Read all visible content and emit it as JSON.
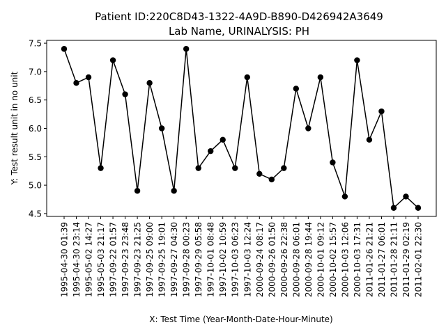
{
  "chart_data": {
    "type": "line",
    "title": "Patient ID:220C8D43-1322-4A9D-B890-D426942A3649",
    "subtitle": "Lab Name, URINALYSIS: PH",
    "xlabel": "X: Test Time (Year-Month-Date-Hour-Minute)",
    "ylabel": "Y: Test result unit in no unit",
    "ylim": [
      4.45,
      7.55
    ],
    "yticks": [
      "4.5",
      "5.0",
      "5.5",
      "6.0",
      "6.5",
      "7.0",
      "7.5"
    ],
    "grid": false,
    "line_color": "#000000",
    "categories": [
      "1995-04-30 01:39",
      "1995-04-30 23:14",
      "1995-05-02 14:27",
      "1995-05-03 21:17",
      "1997-09-22 01:57",
      "1997-09-23 23:48",
      "1997-09-23 21:25",
      "1997-09-25 09:00",
      "1997-09-25 19:01",
      "1997-09-27 04:30",
      "1997-09-28 00:23",
      "1997-09-29 05:58",
      "1997-10-01 08:48",
      "1997-10-02 10:59",
      "1997-10-03 06:23",
      "1997-10-03 12:24",
      "2000-09-24 08:17",
      "2000-09-26 01:50",
      "2000-09-26 22:38",
      "2000-09-28 06:01",
      "2000-09-28 19:44",
      "2000-10-01 09:12",
      "2000-10-02 15:57",
      "2000-10-03 12:06",
      "2000-10-03 17:31",
      "2011-01-26 21:21",
      "2011-01-27 06:01",
      "2011-01-28 21:11",
      "2011-01-29 02:19",
      "2011-02-01 22:30"
    ],
    "values": [
      7.4,
      6.8,
      6.9,
      5.3,
      7.2,
      6.6,
      4.9,
      6.8,
      6.0,
      4.9,
      7.4,
      5.3,
      5.6,
      5.8,
      5.3,
      6.9,
      5.2,
      5.1,
      5.3,
      6.7,
      6.0,
      6.9,
      5.4,
      4.8,
      7.2,
      5.8,
      6.3,
      4.6,
      4.8,
      4.6
    ]
  }
}
